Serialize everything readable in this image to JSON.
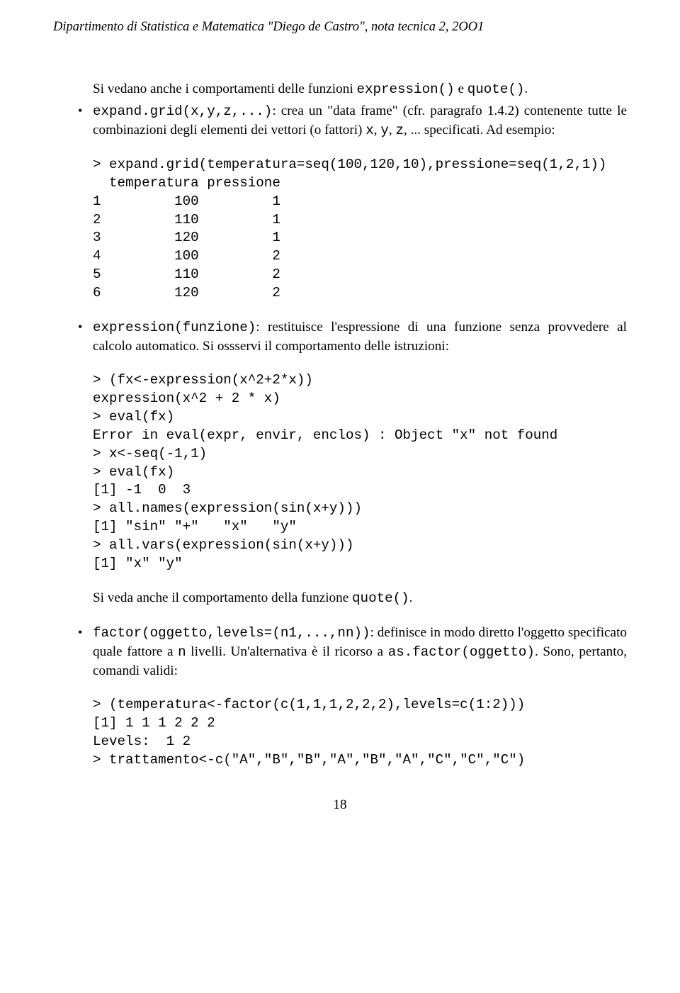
{
  "header": {
    "text_pre": "Dipartimento di Statistica e Matematica \"Diego de Castro\", nota tecnica ",
    "num": "2",
    "text_post": ", 2OO1"
  },
  "para_continue": {
    "pre": "Si vedano anche i comportamenti delle funzioni ",
    "code1": "expression()",
    "mid": " e ",
    "code2": "quote()",
    "post": "."
  },
  "items": [
    {
      "text": {
        "seg1": "expand.grid(x,y,z,...)",
        "seg2": ": crea un \"data frame\" (cfr. paragrafo 1.4.2) contenente tutte le combinazioni degli elementi dei vettori (o fattori) ",
        "seg3": "x",
        "seg4": ", ",
        "seg5": "y",
        "seg6": ", ",
        "seg7": "z",
        "seg8": ", ... specificati. Ad esempio:"
      },
      "code": "> expand.grid(temperatura=seq(100,120,10),pressione=seq(1,2,1))\n  temperatura pressione\n1         100         1\n2         110         1\n3         120         1\n4         100         2\n5         110         2\n6         120         2"
    },
    {
      "text": {
        "seg1": "expression(funzione)",
        "seg2": ": restituisce l'espressione di una funzione senza provvedere al calcolo automatico. Si ossservi il comportamento delle istruzioni:"
      },
      "code": "> (fx<-expression(x^2+2*x))\nexpression(x^2 + 2 * x)\n> eval(fx)\nError in eval(expr, envir, enclos) : Object \"x\" not found\n> x<-seq(-1,1)\n> eval(fx)\n[1] -1  0  3\n> all.names(expression(sin(x+y)))\n[1] \"sin\" \"+\"   \"x\"   \"y\"\n> all.vars(expression(sin(x+y)))\n[1] \"x\" \"y\"",
      "para_after": {
        "pre": "Si veda anche il comportamento della funzione ",
        "code": "quote()",
        "post": "."
      }
    },
    {
      "text": {
        "seg1": "factor(oggetto,levels=(n1,...,nn))",
        "seg2": ": definisce in modo diretto l'oggetto specificato quale fattore a ",
        "seg3": "n",
        "seg4": " livelli. Un'alternativa è il ricorso a ",
        "seg5": "as.factor(oggetto)",
        "seg6": ". Sono, pertanto, comandi validi:"
      },
      "code": "> (temperatura<-factor(c(1,1,1,2,2,2),levels=c(1:2)))\n[1] 1 1 1 2 2 2\nLevels:  1 2\n> trattamento<-c(\"A\",\"B\",\"B\",\"A\",\"B\",\"A\",\"C\",\"C\",\"C\")"
    }
  ],
  "page_number": "18"
}
